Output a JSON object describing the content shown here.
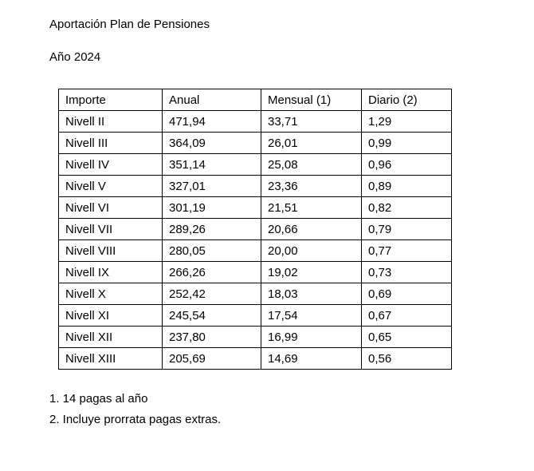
{
  "page": {
    "title": "Aportación Plan de Pensiones",
    "year": "Año 2024"
  },
  "table": {
    "headers": [
      "Importe",
      "Anual",
      "Mensual (1)",
      "Diario (2)"
    ],
    "rows": [
      [
        "Nivell II",
        "471,94",
        "33,71",
        "1,29"
      ],
      [
        "Nivell III",
        "364,09",
        "26,01",
        "0,99"
      ],
      [
        "Nivell IV",
        "351,14",
        "25,08",
        "0,96"
      ],
      [
        "Nivell V",
        "327,01",
        "23,36",
        "0,89"
      ],
      [
        "Nivell VI",
        "301,19",
        "21,51",
        "0,82"
      ],
      [
        "Nivell VII",
        "289,26",
        "20,66",
        "0,79"
      ],
      [
        "Nivell VIII",
        "280,05",
        "20,00",
        "0,77"
      ],
      [
        "Nivell IX",
        "266,26",
        "19,02",
        "0,73"
      ],
      [
        "Nivell X",
        "252,42",
        "18,03",
        "0,69"
      ],
      [
        "Nivell XI",
        "245,54",
        "17,54",
        "0,67"
      ],
      [
        "Nivell XII",
        "237,80",
        "16,99",
        "0,65"
      ],
      [
        "Nivell XIII",
        "205,69",
        "14,69",
        "0,56"
      ]
    ]
  },
  "footnotes": [
    "1. 14 pagas al año",
    "2. Incluye prorrata pagas extras."
  ],
  "colors": {
    "background": "#ffffff",
    "text": "#000000",
    "border": "#000000"
  }
}
